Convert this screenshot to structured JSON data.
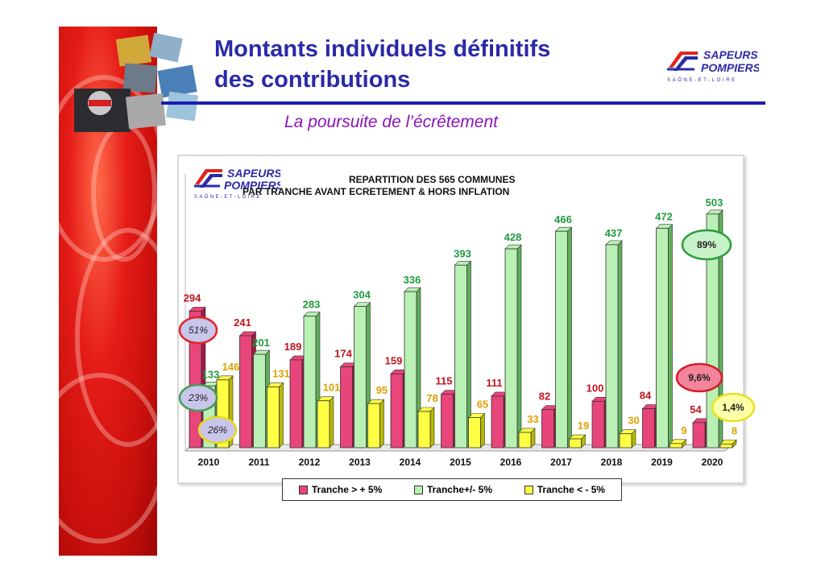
{
  "header": {
    "title_line1": "Montants individuels définitifs",
    "title_line2": "des contributions",
    "subtitle": "La poursuite de l’écrêtement"
  },
  "logo": {
    "line1": "SAPEURS",
    "line2": "POMPIERS",
    "line3": "SAÔNE-ET-LOIRE"
  },
  "chart_title": {
    "line1": "REPARTITION DES 565 COMMUNES",
    "line2": "PAR TRANCHE AVANT ECRETEMENT & HORS INFLATION"
  },
  "colors": {
    "red": "#e8457a",
    "green": "#b9f0b4",
    "yellow": "#ffff44",
    "red_label": "#c0131d",
    "green_label": "#1d9b3c",
    "yellow_label": "#e0a000",
    "brand_blue": "#2a2aa8"
  },
  "chart_data": {
    "type": "bar",
    "categories": [
      "2010",
      "2011",
      "2012",
      "2013",
      "2014",
      "2015",
      "2016",
      "2017",
      "2018",
      "2019",
      "2020"
    ],
    "series": [
      {
        "name": "Tranche > + 5%",
        "values": [
          294,
          241,
          189,
          174,
          159,
          115,
          111,
          82,
          100,
          84,
          54
        ]
      },
      {
        "name": "Tranche+/- 5%",
        "values": [
          133,
          201,
          283,
          304,
          336,
          393,
          428,
          466,
          437,
          472,
          503
        ]
      },
      {
        "name": "Tranche < - 5%",
        "values": [
          146,
          131,
          101,
          95,
          78,
          65,
          33,
          19,
          30,
          9,
          8
        ]
      }
    ],
    "ylim": [
      0,
      520
    ],
    "grid": false,
    "legend_position": "bottom",
    "annotations": [
      {
        "text": "51%",
        "year": "2010",
        "series": "Tranche > + 5%"
      },
      {
        "text": "23%",
        "year": "2010",
        "series": "Tranche+/- 5%"
      },
      {
        "text": "26%",
        "year": "2010",
        "series": "Tranche < - 5%"
      },
      {
        "text": "89%",
        "year": "2020",
        "series": "Tranche+/- 5%"
      },
      {
        "text": "9,6%",
        "year": "2020",
        "series": "Tranche > + 5%"
      },
      {
        "text": "1,4%",
        "year": "2020",
        "series": "Tranche < - 5%"
      }
    ]
  }
}
